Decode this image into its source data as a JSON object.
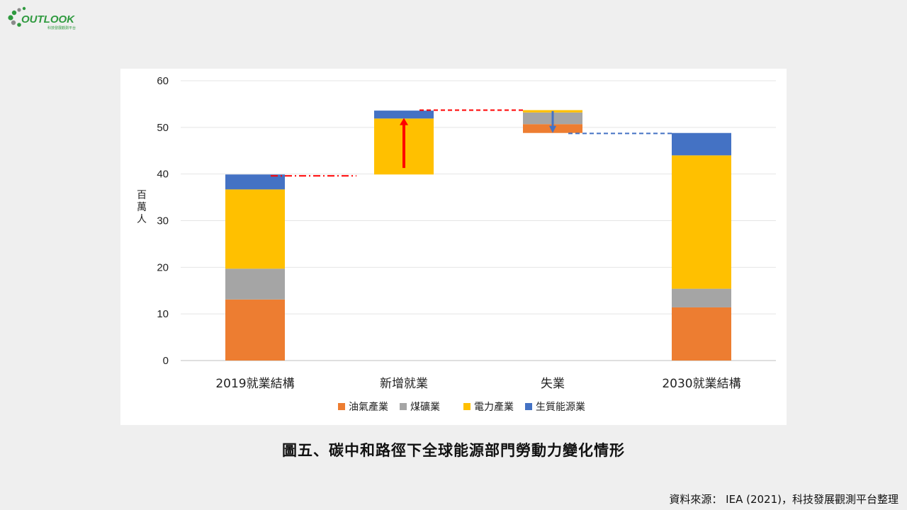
{
  "logo": {
    "text": "OUTLOOK",
    "subtext": "科技發展觀測平台",
    "colors": {
      "green": "#2f9a3f",
      "gray": "#8a8a8a"
    }
  },
  "caption": "圖五、碳中和路徑下全球能源部門勞動力變化情形",
  "source": "資料來源： IEA (2021)，科技發展觀測平台整理",
  "chart_data": {
    "type": "bar",
    "subtype": "stacked-waterfall",
    "categories": [
      "2019就業結構",
      "新增就業",
      "失業",
      "2030就業結構"
    ],
    "ylabel": "百萬人",
    "ylim": [
      0,
      60
    ],
    "yticks": [
      0,
      10,
      20,
      30,
      40,
      50,
      60
    ],
    "grid": true,
    "legend_position": "bottom",
    "series": [
      {
        "name": "油氣產業",
        "color": "#ed7d31",
        "values": [
          13.1,
          0,
          1.9,
          11.4
        ]
      },
      {
        "name": "煤礦業",
        "color": "#a5a5a5",
        "values": [
          6.6,
          0,
          2.5,
          4.0
        ]
      },
      {
        "name": "電力產業",
        "color": "#ffc000",
        "values": [
          17.0,
          12.0,
          0.5,
          28.6
        ]
      },
      {
        "name": "生質能源業",
        "color": "#4472c4",
        "values": [
          3.2,
          1.7,
          0,
          4.8
        ]
      }
    ],
    "base": [
      0,
      39.9,
      48.8,
      0
    ],
    "annotations": [
      {
        "type": "up-arrow",
        "category": "新增就業",
        "from": 41.3,
        "to": 52.0,
        "color": "#ff0000"
      },
      {
        "type": "down-arrow",
        "category": "失業",
        "from": 53.5,
        "to": 48.8,
        "color": "#4472c4"
      },
      {
        "type": "connector",
        "from": "2019就業結構",
        "to": "新增就業",
        "y": 39.6,
        "style": "dash-dot",
        "color": "#ff0000"
      },
      {
        "type": "connector",
        "from": "新增就業",
        "to": "失業",
        "y": 53.7,
        "style": "dashed",
        "color": "#ff0000"
      },
      {
        "type": "connector",
        "from": "失業",
        "to": "2030就業結構",
        "y": 48.7,
        "style": "dashed",
        "color": "#4472c4"
      }
    ]
  }
}
